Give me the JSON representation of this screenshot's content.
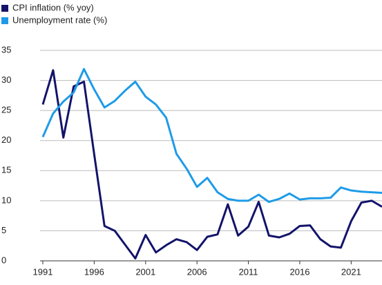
{
  "chart_data": {
    "type": "line",
    "x": [
      1991,
      1992,
      1993,
      1994,
      1995,
      1996,
      1997,
      1998,
      1999,
      2000,
      2001,
      2002,
      2003,
      2004,
      2005,
      2006,
      2007,
      2008,
      2009,
      2010,
      2011,
      2012,
      2013,
      2014,
      2015,
      2016,
      2017,
      2018,
      2019,
      2020,
      2021,
      2022,
      2023,
      2024
    ],
    "series": [
      {
        "name": "CPI inflation (% yoy)",
        "color": "#13136b",
        "values": [
          26,
          31.7,
          20.5,
          29,
          29.8,
          17.7,
          5.8,
          5,
          2.7,
          0.4,
          4.3,
          1.4,
          2.6,
          3.6,
          3.1,
          1.8,
          4,
          4.4,
          9.4,
          4.2,
          5.7,
          9.8,
          4.2,
          3.9,
          4.5,
          5.8,
          5.9,
          3.6,
          2.4,
          2.2,
          6.6,
          9.7,
          10,
          9
        ]
      },
      {
        "name": "Unemployment rate (%)",
        "color": "#1e9be8",
        "values": [
          20.6,
          24.5,
          26.5,
          28,
          31.9,
          28.5,
          25.5,
          26.6,
          28.3,
          29.8,
          27.3,
          26,
          23.8,
          17.8,
          15.3,
          12.3,
          13.8,
          11.4,
          10.3,
          10,
          10,
          11,
          9.8,
          10.3,
          11.2,
          10.2,
          10.4,
          10.4,
          10.5,
          12.2,
          11.7,
          11.5,
          11.4,
          11.3
        ]
      }
    ],
    "xlim": [
      1991,
      2024
    ],
    "xticks": [
      1991,
      1996,
      2001,
      2006,
      2011,
      2016,
      2021
    ],
    "ylim": [
      0,
      35
    ],
    "yticks": [
      0,
      5,
      10,
      15,
      20,
      25,
      30,
      35
    ],
    "grid": true,
    "legend": "top-left"
  }
}
